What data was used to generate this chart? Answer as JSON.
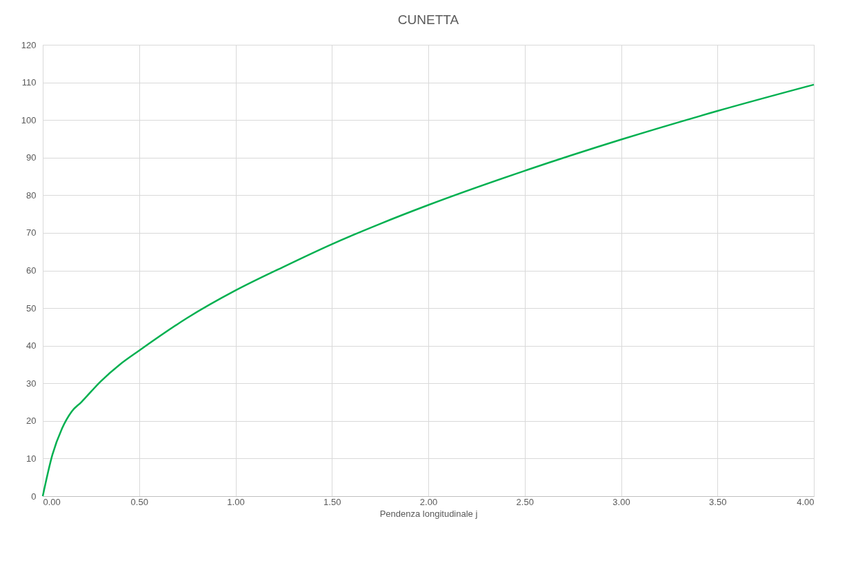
{
  "chart_data": {
    "type": "line",
    "title": "CUNETTA",
    "xlabel": "Pendenza longitudinale j",
    "x": [
      0,
      0.05,
      0.1,
      0.15,
      0.2,
      0.3,
      0.4,
      0.5,
      0.75,
      1,
      1.25,
      1.5,
      1.75,
      2,
      2.5,
      3,
      3.5,
      4
    ],
    "series": [
      {
        "color": "#00b050",
        "values": [
          0,
          11,
          18,
          22.5,
          25,
          30.5,
          35,
          38.7,
          47.4,
          54.7,
          61,
          67,
          72.4,
          77.4,
          86.5,
          94.8,
          102.4,
          109.4
        ]
      }
    ],
    "xlim": [
      0,
      4
    ],
    "xticks": [
      {
        "value": 0,
        "label": "0.00"
      },
      {
        "value": 0.5,
        "label": "0.50"
      },
      {
        "value": 1,
        "label": "1.00"
      },
      {
        "value": 1.5,
        "label": "1.50"
      },
      {
        "value": 2,
        "label": "2.00"
      },
      {
        "value": 2.5,
        "label": "2.50"
      },
      {
        "value": 3,
        "label": "3.00"
      },
      {
        "value": 3.5,
        "label": "3.50"
      },
      {
        "value": 4,
        "label": "4.00"
      }
    ],
    "ylim": [
      0,
      120
    ],
    "yticks": [
      0,
      10,
      20,
      30,
      40,
      50,
      60,
      70,
      80,
      90,
      100,
      110,
      120
    ],
    "grid": true,
    "marker": "none",
    "line_style": "solid",
    "legend": false
  }
}
